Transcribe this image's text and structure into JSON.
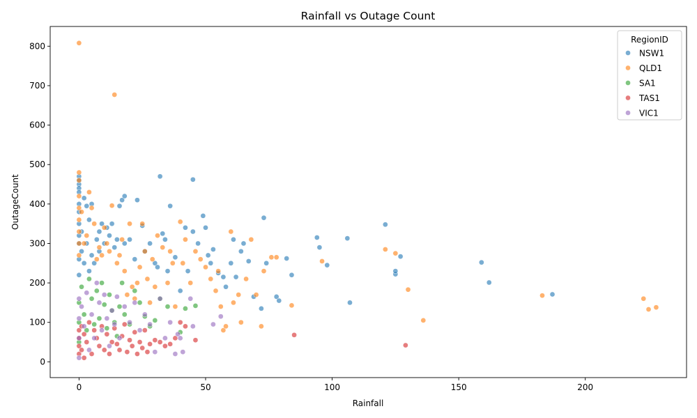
{
  "chart_data": {
    "type": "scatter",
    "title": "Rainfall vs Outage Count",
    "xlabel": "Rainfall",
    "ylabel": "OutageCount",
    "xlim": [
      -11.4,
      240.0
    ],
    "ylim": [
      -40,
      850
    ],
    "xticks": [
      0,
      50,
      100,
      150,
      200
    ],
    "yticks": [
      0,
      100,
      200,
      300,
      400,
      500,
      600,
      700,
      800
    ],
    "grid": false,
    "legend": {
      "title": "RegionID",
      "placement": "top-right"
    },
    "series": [
      {
        "name": "NSW1",
        "color": "#1f77b4",
        "x": [
          0,
          0,
          0,
          0,
          0,
          0,
          0,
          0,
          0,
          0,
          0,
          0,
          1,
          1,
          2,
          2,
          3,
          3,
          4,
          4,
          5,
          5,
          6,
          7,
          8,
          8,
          9,
          10,
          11,
          12,
          13,
          14,
          15,
          16,
          17,
          18,
          18,
          20,
          22,
          23,
          25,
          26,
          28,
          30,
          31,
          32,
          33,
          34,
          35,
          36,
          38,
          40,
          42,
          43,
          45,
          45,
          47,
          49,
          50,
          51,
          52,
          53,
          55,
          57,
          58,
          60,
          61,
          62,
          64,
          65,
          67,
          69,
          72,
          73,
          74,
          78,
          79,
          82,
          84,
          94,
          95,
          98,
          106,
          107,
          121,
          125,
          125,
          127,
          159,
          162,
          187
        ],
        "y": [
          470,
          460,
          450,
          440,
          430,
          400,
          380,
          350,
          320,
          300,
          260,
          220,
          330,
          280,
          415,
          250,
          395,
          300,
          360,
          230,
          400,
          270,
          250,
          310,
          330,
          280,
          350,
          300,
          340,
          320,
          350,
          290,
          310,
          395,
          410,
          420,
          300,
          310,
          260,
          410,
          345,
          280,
          300,
          250,
          240,
          470,
          325,
          310,
          230,
          395,
          265,
          180,
          340,
          230,
          330,
          462,
          300,
          370,
          340,
          270,
          250,
          285,
          225,
          215,
          190,
          250,
          310,
          215,
          280,
          300,
          255,
          165,
          135,
          365,
          250,
          165,
          155,
          262,
          220,
          315,
          290,
          245,
          313,
          150,
          348,
          222,
          230,
          267,
          252,
          201,
          171
        ]
      },
      {
        "name": "QLD1",
        "color": "#ff7f0e",
        "x": [
          0,
          0,
          0,
          0,
          0,
          0,
          0,
          0,
          0,
          1,
          2,
          3,
          4,
          5,
          6,
          7,
          8,
          9,
          10,
          11,
          12,
          13,
          14,
          15,
          16,
          17,
          18,
          19,
          20,
          21,
          22,
          23,
          24,
          25,
          26,
          27,
          28,
          29,
          30,
          31,
          33,
          35,
          36,
          37,
          38,
          40,
          41,
          42,
          44,
          46,
          48,
          50,
          52,
          54,
          55,
          56,
          57,
          58,
          60,
          61,
          63,
          64,
          66,
          68,
          70,
          72,
          73,
          76,
          78,
          84,
          96,
          121,
          125,
          130,
          136,
          183,
          223,
          225,
          228
        ],
        "y": [
          808,
          480,
          460,
          420,
          390,
          360,
          330,
          300,
          270,
          380,
          300,
          320,
          430,
          390,
          350,
          260,
          290,
          270,
          340,
          300,
          280,
          396,
          677,
          250,
          270,
          310,
          230,
          170,
          350,
          190,
          160,
          200,
          240,
          350,
          280,
          210,
          150,
          260,
          190,
          320,
          290,
          200,
          280,
          250,
          140,
          355,
          250,
          310,
          200,
          280,
          260,
          240,
          210,
          180,
          230,
          140,
          80,
          90,
          330,
          150,
          170,
          100,
          210,
          310,
          170,
          90,
          230,
          265,
          265,
          143,
          255,
          285,
          275,
          183,
          105,
          168,
          160,
          133,
          138
        ]
      },
      {
        "name": "SA1",
        "color": "#2ca02c",
        "x": [
          0,
          0,
          0,
          1,
          2,
          3,
          4,
          5,
          6,
          7,
          8,
          9,
          10,
          11,
          12,
          13,
          14,
          15,
          16,
          17,
          18,
          20,
          22,
          24,
          26,
          28,
          30,
          32,
          35,
          40,
          42,
          46
        ],
        "y": [
          50,
          100,
          150,
          190,
          120,
          80,
          210,
          160,
          95,
          180,
          110,
          200,
          145,
          85,
          170,
          130,
          100,
          65,
          140,
          200,
          120,
          95,
          180,
          150,
          115,
          90,
          105,
          160,
          140,
          75,
          135,
          142
        ]
      },
      {
        "name": "TAS1",
        "color": "#d62728",
        "x": [
          0,
          0,
          0,
          0,
          1,
          1,
          2,
          2,
          3,
          4,
          5,
          6,
          7,
          8,
          9,
          10,
          11,
          12,
          13,
          14,
          15,
          16,
          17,
          18,
          19,
          20,
          21,
          22,
          23,
          24,
          25,
          26,
          27,
          28,
          30,
          32,
          34,
          36,
          38,
          40,
          42,
          46,
          85,
          129
        ],
        "y": [
          20,
          40,
          60,
          80,
          30,
          90,
          10,
          70,
          50,
          100,
          20,
          80,
          60,
          40,
          90,
          30,
          70,
          20,
          50,
          85,
          45,
          30,
          65,
          95,
          25,
          55,
          40,
          75,
          20,
          50,
          35,
          80,
          25,
          45,
          55,
          50,
          40,
          45,
          60,
          100,
          90,
          55,
          68,
          42
        ]
      },
      {
        "name": "VIC1",
        "color": "#9467bd",
        "x": [
          0,
          0,
          0,
          0,
          1,
          2,
          3,
          4,
          5,
          6,
          7,
          8,
          9,
          10,
          11,
          12,
          13,
          14,
          15,
          16,
          18,
          20,
          22,
          24,
          26,
          28,
          30,
          32,
          34,
          36,
          38,
          39,
          40,
          41,
          44,
          45,
          53,
          56
        ],
        "y": [
          10,
          60,
          110,
          160,
          140,
          90,
          175,
          30,
          120,
          60,
          200,
          150,
          80,
          170,
          110,
          40,
          130,
          95,
          165,
          60,
          140,
          100,
          150,
          80,
          120,
          95,
          25,
          160,
          60,
          100,
          20,
          70,
          60,
          25,
          160,
          90,
          95,
          115
        ]
      }
    ]
  }
}
